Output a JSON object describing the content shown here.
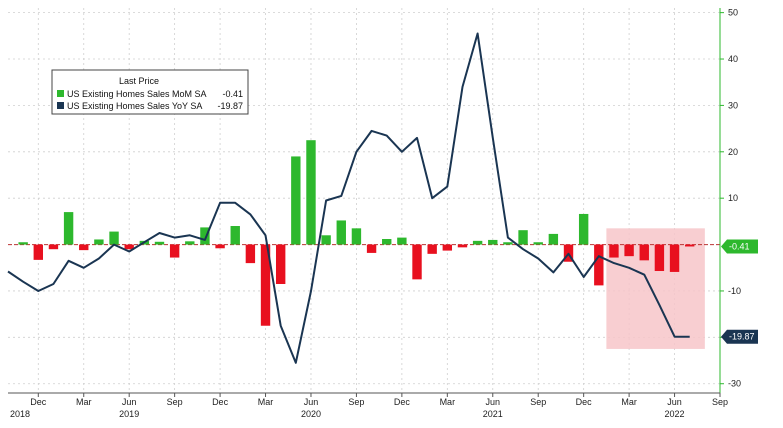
{
  "chart_data": {
    "type": "bar+line",
    "legend": {
      "title": "Last Price",
      "placement": "top-left",
      "entries": [
        {
          "label": "US Existing Homes Sales MoM SA",
          "value": "-0.41",
          "color": "#2db82d"
        },
        {
          "label": "US Existing Homes Sales YoY SA",
          "value": "-19.87",
          "color": "#1a3552"
        }
      ]
    },
    "x_ticks": [
      "Dec",
      "Mar",
      "Jun",
      "Sep",
      "Dec",
      "Mar",
      "Jun",
      "Sep",
      "Dec",
      "Mar",
      "Jun",
      "Sep",
      "Dec",
      "Mar",
      "Jun",
      "Sep"
    ],
    "year_labels": [
      "2018",
      "2019",
      "2020",
      "2021",
      "2022"
    ],
    "y_axis": {
      "side": "right",
      "range": [
        -32,
        51
      ],
      "ticks": [
        "50",
        "40",
        "30",
        "20",
        "10",
        "-10",
        "-20",
        "-30"
      ]
    },
    "grid": true,
    "series": [
      {
        "name": "US Existing Homes Sales MoM SA",
        "type": "bar",
        "positive_color": "#2db82d",
        "negative_color": "#e8101f",
        "months": [
          "2018-11",
          "2018-12",
          "2019-01",
          "2019-02",
          "2019-03",
          "2019-04",
          "2019-05",
          "2019-06",
          "2019-07",
          "2019-08",
          "2019-09",
          "2019-10",
          "2019-11",
          "2019-12",
          "2020-01",
          "2020-02",
          "2020-03",
          "2020-04",
          "2020-05",
          "2020-06",
          "2020-07",
          "2020-08",
          "2020-09",
          "2020-10",
          "2020-11",
          "2020-12",
          "2021-01",
          "2021-02",
          "2021-03",
          "2021-04",
          "2021-05",
          "2021-06",
          "2021-07",
          "2021-08",
          "2021-09",
          "2021-10",
          "2021-11",
          "2021-12",
          "2022-01",
          "2022-02",
          "2022-03",
          "2022-04",
          "2022-05",
          "2022-06",
          "2022-07"
        ],
        "values": [
          0.5,
          -3.3,
          -1.0,
          7.0,
          -1.2,
          1.1,
          2.8,
          -1.0,
          0.8,
          0.6,
          -2.8,
          0.7,
          3.7,
          -0.8,
          4.0,
          -4.0,
          -17.5,
          -8.5,
          19.0,
          22.5,
          2.0,
          5.2,
          3.5,
          -1.8,
          1.2,
          1.5,
          -7.5,
          -2.0,
          -1.3,
          -0.6,
          0.8,
          1.0,
          0.5,
          3.1,
          0.5,
          2.3,
          -3.7,
          6.6,
          -8.8,
          -2.8,
          -2.5,
          -3.4,
          -5.7,
          -5.9,
          -0.41
        ]
      },
      {
        "name": "US Existing Homes Sales YoY SA",
        "type": "line",
        "color": "#1a3552",
        "months": [
          "2018-10",
          "2018-11",
          "2018-12",
          "2019-01",
          "2019-02",
          "2019-03",
          "2019-04",
          "2019-05",
          "2019-06",
          "2019-07",
          "2019-08",
          "2019-09",
          "2019-10",
          "2019-11",
          "2019-12",
          "2020-01",
          "2020-02",
          "2020-03",
          "2020-04",
          "2020-05",
          "2020-06",
          "2020-07",
          "2020-08",
          "2020-09",
          "2020-10",
          "2020-11",
          "2020-12",
          "2021-01",
          "2021-02",
          "2021-03",
          "2021-04",
          "2021-05",
          "2021-06",
          "2021-07",
          "2021-08",
          "2021-09",
          "2021-10",
          "2021-11",
          "2021-12",
          "2022-01",
          "2022-02",
          "2022-03",
          "2022-04",
          "2022-05",
          "2022-06",
          "2022-07"
        ],
        "values": [
          -5.8,
          -8.0,
          -10.0,
          -8.5,
          -3.5,
          -5.0,
          -3.0,
          0.0,
          -1.5,
          0.5,
          2.5,
          1.5,
          2.0,
          1.0,
          9.0,
          9.0,
          6.5,
          2.0,
          -17.5,
          -25.5,
          -10.0,
          9.5,
          10.5,
          20.0,
          24.5,
          23.5,
          20.0,
          23.0,
          10.0,
          12.5,
          34.0,
          45.5,
          23.0,
          1.5,
          -1.0,
          -3.0,
          -6.0,
          -2.0,
          -7.0,
          -2.5,
          -4.0,
          -5.0,
          -6.5,
          -13.0,
          -19.87,
          -19.87
        ]
      }
    ],
    "annotations": [
      {
        "type": "shaded-region",
        "from": "2022-02",
        "to": "2022-08",
        "y_range": [
          -22.5,
          3.5
        ],
        "color": "#f7c6c9"
      },
      {
        "type": "last-value-tag",
        "series": "US Existing Homes Sales MoM SA",
        "text": "-0.41",
        "value": -0.41,
        "color": "#2db82d"
      },
      {
        "type": "last-value-tag",
        "series": "US Existing Homes Sales YoY SA",
        "text": "-19.87",
        "value": -19.87,
        "color": "#1a3552"
      }
    ]
  }
}
